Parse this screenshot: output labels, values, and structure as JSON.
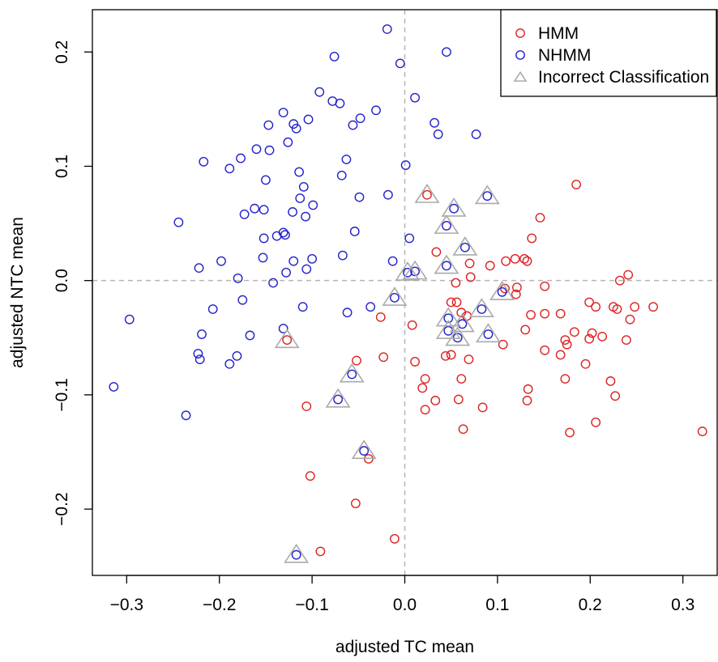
{
  "chart_data": {
    "type": "scatter",
    "xlabel": "adjusted TC mean",
    "ylabel": "adjusted NTC mean",
    "xlim": [
      -0.337,
      0.337
    ],
    "ylim": [
      -0.258,
      0.237
    ],
    "xticks": [
      "-0.3",
      "-0.2",
      "-0.1",
      "0.0",
      "0.1",
      "0.2",
      "0.3"
    ],
    "xtick_values": [
      -0.3,
      -0.2,
      -0.1,
      0.0,
      0.1,
      0.2,
      0.3
    ],
    "yticks": [
      "-0.2",
      "-0.1",
      "0.0",
      "0.1",
      "0.2"
    ],
    "ytick_values": [
      -0.2,
      -0.1,
      0.0,
      0.1,
      0.2
    ],
    "reference_lines": {
      "x": 0,
      "y": 0,
      "style": "dashed"
    },
    "grid": false,
    "legend_position": "top-right",
    "legend": [
      {
        "label": "HMM",
        "marker": "circle",
        "color": "#dd2222"
      },
      {
        "label": "NHMM",
        "marker": "circle",
        "color": "#2222cc"
      },
      {
        "label": "Incorrect Classification",
        "marker": "triangle",
        "color": "#aaaaaa"
      }
    ],
    "series": [
      {
        "name": "HMM",
        "color": "#dd2222",
        "marker": "circle",
        "points": [
          [
            0.024,
            0.075
          ],
          [
            0.185,
            0.084
          ],
          [
            0.146,
            0.055
          ],
          [
            0.137,
            0.037
          ],
          [
            0.034,
            0.025
          ],
          [
            0.129,
            0.019
          ],
          [
            0.119,
            0.019
          ],
          [
            0.109,
            0.017
          ],
          [
            0.092,
            0.013
          ],
          [
            0.132,
            0.017
          ],
          [
            0.07,
            0.015
          ],
          [
            0.241,
            0.005
          ],
          [
            0.071,
            0.003
          ],
          [
            0.232,
            0.0
          ],
          [
            0.055,
            -0.002
          ],
          [
            0.151,
            -0.005
          ],
          [
            0.108,
            -0.007
          ],
          [
            0.121,
            -0.006
          ],
          [
            0.12,
            -0.012
          ],
          [
            0.05,
            -0.019
          ],
          [
            0.056,
            -0.019
          ],
          [
            0.199,
            -0.019
          ],
          [
            0.206,
            -0.023
          ],
          [
            0.248,
            -0.023
          ],
          [
            0.225,
            -0.023
          ],
          [
            0.229,
            -0.025
          ],
          [
            0.268,
            -0.023
          ],
          [
            0.061,
            -0.028
          ],
          [
            0.067,
            -0.031
          ],
          [
            0.136,
            -0.03
          ],
          [
            0.151,
            -0.029
          ],
          [
            0.168,
            -0.029
          ],
          [
            0.243,
            -0.034
          ],
          [
            0.183,
            -0.045
          ],
          [
            0.202,
            -0.046
          ],
          [
            0.13,
            -0.043
          ],
          [
            0.199,
            -0.051
          ],
          [
            0.213,
            -0.049
          ],
          [
            0.173,
            -0.052
          ],
          [
            0.175,
            -0.056
          ],
          [
            0.106,
            -0.056
          ],
          [
            0.239,
            -0.052
          ],
          [
            0.151,
            -0.061
          ],
          [
            0.168,
            -0.065
          ],
          [
            0.195,
            -0.073
          ],
          [
            0.044,
            -0.066
          ],
          [
            0.05,
            -0.065
          ],
          [
            0.069,
            -0.069
          ],
          [
            0.011,
            -0.071
          ],
          [
            -0.023,
            -0.067
          ],
          [
            -0.052,
            -0.07
          ],
          [
            -0.026,
            -0.032
          ],
          [
            0.008,
            -0.039
          ],
          [
            0.061,
            -0.086
          ],
          [
            0.022,
            -0.086
          ],
          [
            0.019,
            -0.094
          ],
          [
            0.173,
            -0.086
          ],
          [
            0.222,
            -0.088
          ],
          [
            0.133,
            -0.095
          ],
          [
            0.033,
            -0.105
          ],
          [
            0.058,
            -0.104
          ],
          [
            0.132,
            -0.105
          ],
          [
            0.227,
            -0.101
          ],
          [
            0.022,
            -0.113
          ],
          [
            0.084,
            -0.111
          ],
          [
            0.178,
            -0.133
          ],
          [
            0.206,
            -0.124
          ],
          [
            0.063,
            -0.13
          ],
          [
            -0.106,
            -0.11
          ],
          [
            -0.102,
            -0.171
          ],
          [
            -0.039,
            -0.156
          ],
          [
            -0.053,
            -0.195
          ],
          [
            -0.011,
            -0.226
          ],
          [
            -0.091,
            -0.237
          ],
          [
            0.321,
            -0.132
          ],
          [
            -0.127,
            -0.052
          ]
        ]
      },
      {
        "name": "NHMM",
        "color": "#2222cc",
        "marker": "circle",
        "points": [
          [
            -0.019,
            0.22
          ],
          [
            0.045,
            0.2
          ],
          [
            -0.076,
            0.196
          ],
          [
            -0.005,
            0.19
          ],
          [
            -0.092,
            0.165
          ],
          [
            0.011,
            0.16
          ],
          [
            -0.078,
            0.157
          ],
          [
            -0.07,
            0.155
          ],
          [
            -0.031,
            0.149
          ],
          [
            -0.131,
            0.147
          ],
          [
            -0.048,
            0.142
          ],
          [
            -0.104,
            0.141
          ],
          [
            -0.12,
            0.137
          ],
          [
            -0.147,
            0.136
          ],
          [
            -0.056,
            0.136
          ],
          [
            0.032,
            0.138
          ],
          [
            -0.117,
            0.133
          ],
          [
            0.077,
            0.128
          ],
          [
            0.036,
            0.128
          ],
          [
            -0.126,
            0.121
          ],
          [
            -0.16,
            0.115
          ],
          [
            -0.146,
            0.114
          ],
          [
            -0.177,
            0.107
          ],
          [
            -0.063,
            0.106
          ],
          [
            -0.217,
            0.104
          ],
          [
            0.001,
            0.101
          ],
          [
            -0.189,
            0.098
          ],
          [
            -0.114,
            0.095
          ],
          [
            -0.068,
            0.092
          ],
          [
            -0.15,
            0.088
          ],
          [
            -0.109,
            0.082
          ],
          [
            -0.018,
            0.075
          ],
          [
            -0.049,
            0.073
          ],
          [
            -0.113,
            0.072
          ],
          [
            0.089,
            0.074
          ],
          [
            -0.099,
            0.066
          ],
          [
            -0.162,
            0.063
          ],
          [
            -0.152,
            0.062
          ],
          [
            0.053,
            0.063
          ],
          [
            -0.121,
            0.06
          ],
          [
            -0.173,
            0.058
          ],
          [
            -0.107,
            0.056
          ],
          [
            -0.244,
            0.051
          ],
          [
            0.045,
            0.048
          ],
          [
            -0.131,
            0.042
          ],
          [
            -0.129,
            0.04
          ],
          [
            -0.138,
            0.039
          ],
          [
            -0.152,
            0.037
          ],
          [
            -0.054,
            0.043
          ],
          [
            0.005,
            0.037
          ],
          [
            0.065,
            0.029
          ],
          [
            -0.067,
            0.022
          ],
          [
            -0.12,
            0.017
          ],
          [
            -0.198,
            0.017
          ],
          [
            -0.153,
            0.02
          ],
          [
            -0.1,
            0.019
          ],
          [
            -0.013,
            0.017
          ],
          [
            0.045,
            0.013
          ],
          [
            -0.106,
            0.01
          ],
          [
            -0.222,
            0.011
          ],
          [
            -0.128,
            0.007
          ],
          [
            0.003,
            0.007
          ],
          [
            0.011,
            0.008
          ],
          [
            -0.18,
            0.002
          ],
          [
            -0.142,
            -0.002
          ],
          [
            0.105,
            -0.01
          ],
          [
            -0.011,
            -0.015
          ],
          [
            -0.175,
            -0.017
          ],
          [
            -0.207,
            -0.025
          ],
          [
            -0.062,
            -0.028
          ],
          [
            -0.037,
            -0.023
          ],
          [
            -0.11,
            -0.023
          ],
          [
            0.083,
            -0.025
          ],
          [
            0.047,
            -0.033
          ],
          [
            0.062,
            -0.038
          ],
          [
            -0.297,
            -0.034
          ],
          [
            -0.219,
            -0.047
          ],
          [
            -0.167,
            -0.048
          ],
          [
            0.047,
            -0.044
          ],
          [
            0.09,
            -0.047
          ],
          [
            -0.131,
            -0.042
          ],
          [
            0.057,
            -0.05
          ],
          [
            -0.181,
            -0.066
          ],
          [
            -0.223,
            -0.064
          ],
          [
            -0.221,
            -0.069
          ],
          [
            -0.189,
            -0.073
          ],
          [
            -0.057,
            -0.082
          ],
          [
            -0.072,
            -0.104
          ],
          [
            -0.314,
            -0.093
          ],
          [
            -0.236,
            -0.118
          ],
          [
            -0.044,
            -0.149
          ],
          [
            -0.117,
            -0.24
          ]
        ]
      },
      {
        "name": "Incorrect Classification",
        "color": "#aaaaaa",
        "marker": "triangle",
        "points": [
          [
            0.024,
            0.075
          ],
          [
            0.089,
            0.074
          ],
          [
            0.053,
            0.063
          ],
          [
            0.045,
            0.048
          ],
          [
            0.065,
            0.029
          ],
          [
            0.045,
            0.013
          ],
          [
            0.003,
            0.007
          ],
          [
            0.011,
            0.008
          ],
          [
            -0.011,
            -0.015
          ],
          [
            0.105,
            -0.01
          ],
          [
            0.083,
            -0.025
          ],
          [
            0.047,
            -0.033
          ],
          [
            0.062,
            -0.038
          ],
          [
            0.047,
            -0.044
          ],
          [
            0.057,
            -0.05
          ],
          [
            0.09,
            -0.047
          ],
          [
            -0.127,
            -0.052
          ],
          [
            -0.057,
            -0.082
          ],
          [
            -0.072,
            -0.104
          ],
          [
            -0.044,
            -0.149
          ],
          [
            -0.117,
            -0.24
          ]
        ]
      }
    ]
  }
}
